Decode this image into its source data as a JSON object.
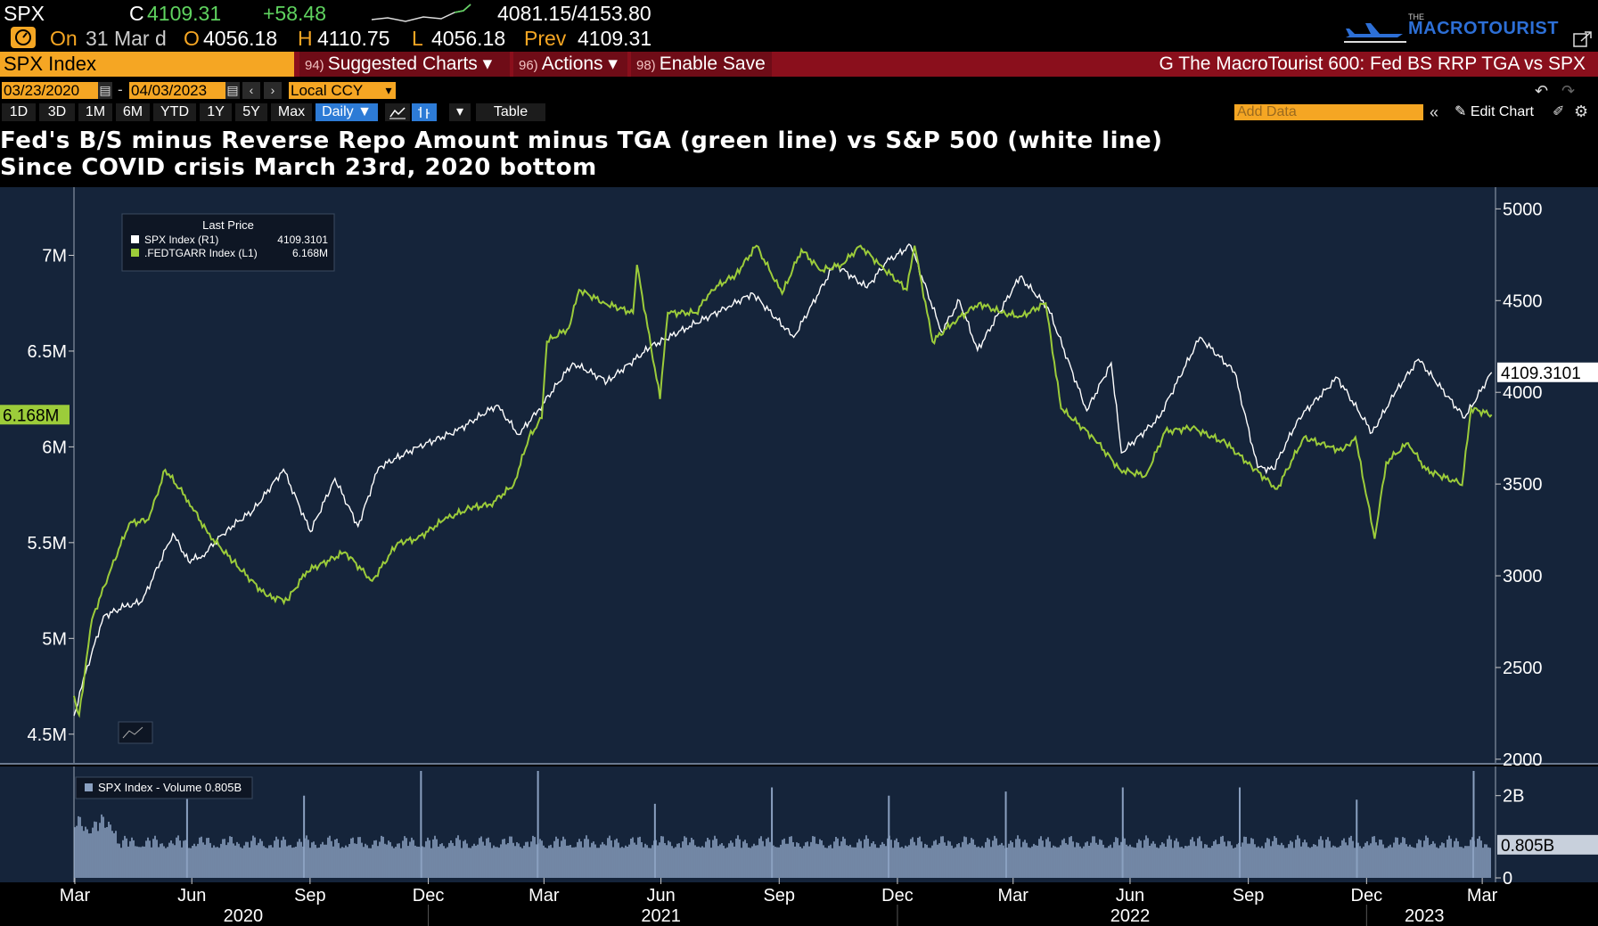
{
  "quote": {
    "ticker": "SPX",
    "c_label": "C",
    "last": "4109.31",
    "change": "+58.48",
    "range": "4081.15/4153.80",
    "on_label": "On",
    "date": "31 Mar d",
    "o_label": "O",
    "open": "4056.18",
    "h_label": "H",
    "high": "4110.75",
    "l_label": "L",
    "low": "4056.18",
    "prev_label": "Prev",
    "prev": "4109.31"
  },
  "brand": {
    "small": "THE",
    "name": "MACROTOURIST"
  },
  "command": {
    "security": "SPX Index",
    "buttons": [
      {
        "num": "94)",
        "label": "Suggested Charts ▾"
      },
      {
        "num": "96)",
        "label": "Actions ▾"
      },
      {
        "num": "98)",
        "label": "Enable Save"
      }
    ],
    "title": "G The MacroTourist 600: Fed BS RRP TGA vs SPX"
  },
  "dates": {
    "start": "03/23/2020",
    "dash": "-",
    "end": "04/03/2023",
    "currency": "Local CCY"
  },
  "ranges": [
    "1D",
    "3D",
    "1M",
    "6M",
    "YTD",
    "1Y",
    "5Y",
    "Max"
  ],
  "frequency": "Daily ▼",
  "table_label": "Table",
  "add_data_placeholder": "Add Data",
  "edit_chart_label": "Edit Chart",
  "titles": {
    "line1": "Fed's B/S minus Reverse Repo Amount minus TGA (green line) vs S&P 500 (white line)",
    "line2": "Since COVID crisis March 23rd, 2020 bottom"
  },
  "chart_data": {
    "type": "line",
    "legend": {
      "header": "Last Price",
      "placement": "top-left",
      "entries": [
        {
          "name": "SPX Index  (R1)",
          "value": "4109.3101",
          "color": "#ffffff"
        },
        {
          "name": ".FEDTGARR Index  (L1)",
          "value": "6.168M",
          "color": "#9ccc3a"
        }
      ]
    },
    "left_axis": {
      "ticks": [
        "7M",
        "6.5M",
        "6M",
        "5.5M",
        "5M",
        "4.5M"
      ],
      "range": [
        4.35,
        7.3
      ],
      "unit": "M",
      "last_label": "6.168M"
    },
    "right_axis": {
      "ticks": [
        "5000",
        "4500",
        "4000",
        "3500",
        "3000",
        "2500",
        "2000"
      ],
      "range": [
        1980,
        5060
      ],
      "last_label": "4109.3101"
    },
    "x_months": [
      "Mar",
      "Jun",
      "Sep",
      "Dec",
      "Mar",
      "Jun",
      "Sep",
      "Dec",
      "Mar",
      "Jun",
      "Sep",
      "Dec",
      "Mar"
    ],
    "x_years": [
      "2020",
      "2021",
      "2022",
      "2023"
    ],
    "x_range": [
      "2020-03-23",
      "2023-04-03"
    ],
    "series": [
      {
        "name": "SPX Index",
        "axis": "right",
        "color": "#ffffff",
        "points": [
          [
            "2020-03-23",
            2237
          ],
          [
            "2020-04-01",
            2470
          ],
          [
            "2020-04-15",
            2780
          ],
          [
            "2020-05-01",
            2830
          ],
          [
            "2020-05-15",
            2860
          ],
          [
            "2020-06-08",
            3230
          ],
          [
            "2020-06-20",
            3080
          ],
          [
            "2020-07-01",
            3110
          ],
          [
            "2020-07-20",
            3250
          ],
          [
            "2020-08-10",
            3360
          ],
          [
            "2020-09-02",
            3580
          ],
          [
            "2020-09-23",
            3240
          ],
          [
            "2020-10-12",
            3530
          ],
          [
            "2020-10-30",
            3270
          ],
          [
            "2020-11-15",
            3590
          ],
          [
            "2020-12-15",
            3700
          ],
          [
            "2021-01-15",
            3790
          ],
          [
            "2021-02-15",
            3930
          ],
          [
            "2021-03-04",
            3770
          ],
          [
            "2021-03-20",
            3910
          ],
          [
            "2021-04-15",
            4160
          ],
          [
            "2021-05-12",
            4060
          ],
          [
            "2021-06-15",
            4250
          ],
          [
            "2021-07-15",
            4360
          ],
          [
            "2021-08-15",
            4470
          ],
          [
            "2021-09-02",
            4540
          ],
          [
            "2021-10-04",
            4300
          ],
          [
            "2021-11-05",
            4700
          ],
          [
            "2021-11-30",
            4570
          ],
          [
            "2021-12-15",
            4710
          ],
          [
            "2022-01-03",
            4800
          ],
          [
            "2022-01-27",
            4330
          ],
          [
            "2022-02-10",
            4500
          ],
          [
            "2022-02-24",
            4230
          ],
          [
            "2022-03-29",
            4630
          ],
          [
            "2022-04-20",
            4460
          ],
          [
            "2022-05-20",
            3900
          ],
          [
            "2022-06-08",
            4160
          ],
          [
            "2022-06-16",
            3670
          ],
          [
            "2022-07-15",
            3860
          ],
          [
            "2022-08-16",
            4300
          ],
          [
            "2022-09-12",
            4110
          ],
          [
            "2022-09-30",
            3590
          ],
          [
            "2022-10-12",
            3580
          ],
          [
            "2022-11-01",
            3860
          ],
          [
            "2022-12-01",
            4080
          ],
          [
            "2022-12-28",
            3780
          ],
          [
            "2023-01-15",
            4000
          ],
          [
            "2023-02-02",
            4180
          ],
          [
            "2023-03-10",
            3860
          ],
          [
            "2023-03-31",
            4109
          ]
        ]
      },
      {
        "name": ".FEDTGARR Index",
        "axis": "left",
        "color": "#9ccc3a",
        "points": [
          [
            "2020-03-23",
            4.7
          ],
          [
            "2020-03-27",
            4.6
          ],
          [
            "2020-04-06",
            5.1
          ],
          [
            "2020-04-20",
            5.35
          ],
          [
            "2020-05-05",
            5.6
          ],
          [
            "2020-05-20",
            5.62
          ],
          [
            "2020-06-02",
            5.88
          ],
          [
            "2020-06-20",
            5.72
          ],
          [
            "2020-07-05",
            5.55
          ],
          [
            "2020-07-25",
            5.4
          ],
          [
            "2020-08-20",
            5.22
          ],
          [
            "2020-09-05",
            5.2
          ],
          [
            "2020-09-20",
            5.35
          ],
          [
            "2020-10-20",
            5.45
          ],
          [
            "2020-11-10",
            5.3
          ],
          [
            "2020-11-30",
            5.5
          ],
          [
            "2020-12-15",
            5.52
          ],
          [
            "2021-01-05",
            5.62
          ],
          [
            "2021-01-25",
            5.68
          ],
          [
            "2021-02-10",
            5.7
          ],
          [
            "2021-02-28",
            5.8
          ],
          [
            "2021-03-12",
            6.05
          ],
          [
            "2021-03-22",
            6.15
          ],
          [
            "2021-03-26",
            6.55
          ],
          [
            "2021-04-12",
            6.62
          ],
          [
            "2021-04-20",
            6.82
          ],
          [
            "2021-05-10",
            6.75
          ],
          [
            "2021-06-01",
            6.7
          ],
          [
            "2021-06-04",
            6.95
          ],
          [
            "2021-06-22",
            6.25
          ],
          [
            "2021-06-28",
            6.7
          ],
          [
            "2021-07-20",
            6.7
          ],
          [
            "2021-08-01",
            6.82
          ],
          [
            "2021-08-20",
            6.9
          ],
          [
            "2021-09-05",
            7.05
          ],
          [
            "2021-09-25",
            6.8
          ],
          [
            "2021-10-10",
            7.03
          ],
          [
            "2021-10-25",
            6.92
          ],
          [
            "2021-11-10",
            6.95
          ],
          [
            "2021-11-25",
            7.05
          ],
          [
            "2021-12-10",
            6.95
          ],
          [
            "2021-12-31",
            6.82
          ],
          [
            "2022-01-06",
            7.05
          ],
          [
            "2022-01-20",
            6.55
          ],
          [
            "2022-02-05",
            6.65
          ],
          [
            "2022-02-25",
            6.75
          ],
          [
            "2022-03-15",
            6.7
          ],
          [
            "2022-03-30",
            6.68
          ],
          [
            "2022-04-18",
            6.75
          ],
          [
            "2022-04-30",
            6.2
          ],
          [
            "2022-05-25",
            6.05
          ],
          [
            "2022-06-15",
            5.88
          ],
          [
            "2022-07-05",
            5.85
          ],
          [
            "2022-07-20",
            6.08
          ],
          [
            "2022-08-10",
            6.1
          ],
          [
            "2022-09-05",
            6.02
          ],
          [
            "2022-09-25",
            5.9
          ],
          [
            "2022-10-15",
            5.78
          ],
          [
            "2022-11-05",
            6.05
          ],
          [
            "2022-11-25",
            6.0
          ],
          [
            "2022-12-05",
            5.98
          ],
          [
            "2022-12-15",
            6.05
          ],
          [
            "2022-12-30",
            5.52
          ],
          [
            "2023-01-08",
            5.92
          ],
          [
            "2023-01-25",
            6.02
          ],
          [
            "2023-02-08",
            5.88
          ],
          [
            "2023-03-02",
            5.82
          ],
          [
            "2023-03-08",
            5.8
          ],
          [
            "2023-03-15",
            6.2
          ],
          [
            "2023-03-31",
            6.168
          ]
        ]
      }
    ],
    "volume": {
      "legend": "SPX Index - Volume 0.805B",
      "ticks": [
        "2B",
        "0"
      ],
      "last_label": "0.805B",
      "range": [
        0,
        2.6
      ],
      "typical_B": 0.9,
      "spikes": [
        [
          "2020-06-19",
          2.1
        ],
        [
          "2020-09-18",
          2.0
        ],
        [
          "2020-12-18",
          2.8
        ],
        [
          "2021-03-19",
          2.7
        ],
        [
          "2021-06-18",
          1.8
        ],
        [
          "2021-09-17",
          2.2
        ],
        [
          "2021-12-17",
          2.0
        ],
        [
          "2022-03-18",
          2.1
        ],
        [
          "2022-06-17",
          2.2
        ],
        [
          "2022-09-16",
          2.2
        ],
        [
          "2022-12-16",
          1.9
        ],
        [
          "2023-03-17",
          3.2
        ]
      ]
    }
  }
}
